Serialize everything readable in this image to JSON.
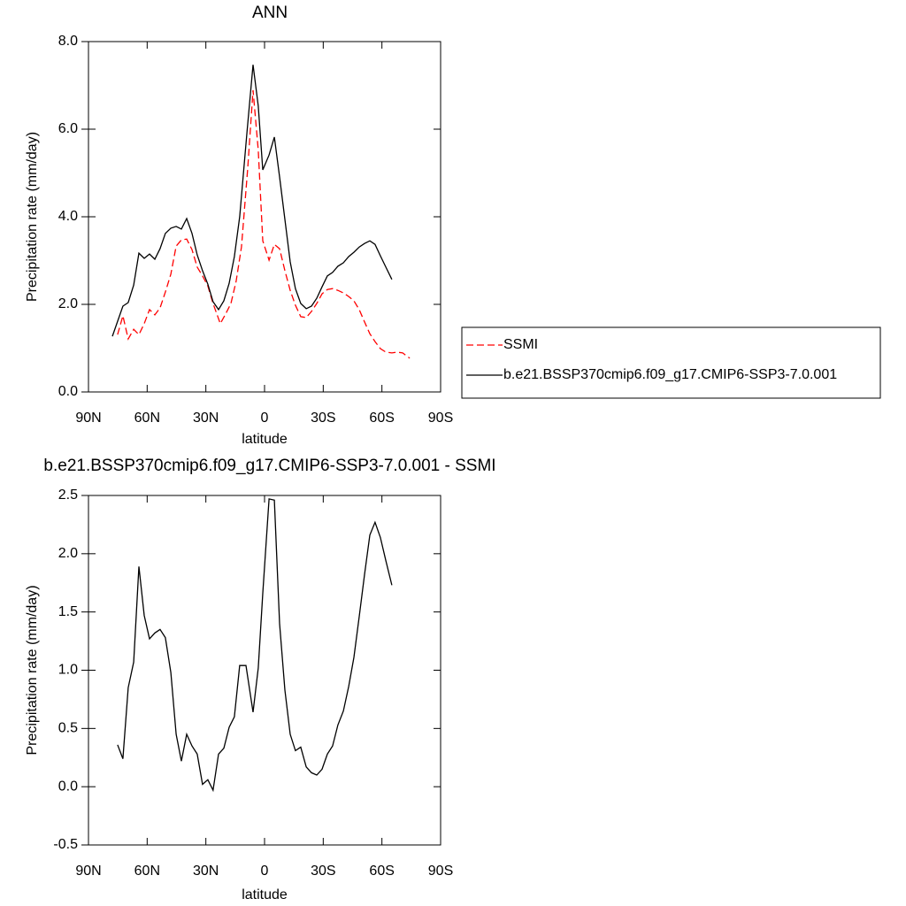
{
  "chart_data": [
    {
      "type": "line",
      "title": "ANN",
      "xlabel": "latitude",
      "ylabel": "Precipitation rate (mm/day)",
      "xlim": [
        90,
        -90
      ],
      "xticks": [
        {
          "value": 90,
          "label": "90N"
        },
        {
          "value": 60,
          "label": "60N"
        },
        {
          "value": 30,
          "label": "30N"
        },
        0,
        {
          "value": -30,
          "label": "30S"
        },
        {
          "value": -60,
          "label": "60S"
        },
        {
          "value": -90,
          "label": "90S"
        }
      ],
      "ylim": [
        0,
        8
      ],
      "yticks": [
        {
          "value": 0,
          "label": "0.0"
        },
        {
          "value": 2,
          "label": "2.0"
        },
        {
          "value": 4,
          "label": "4.0"
        },
        {
          "value": 6,
          "label": "6.0"
        },
        {
          "value": 8,
          "label": "8.0"
        }
      ],
      "series": [
        {
          "name": "SSMI",
          "color": "#ff0000",
          "line_style": "dashed",
          "x": [
            75.1,
            72.4,
            69.7,
            66.9,
            64.2,
            61.5,
            58.8,
            56.1,
            53.4,
            50.7,
            47.9,
            45.2,
            42.5,
            39.8,
            37.1,
            34.4,
            31.7,
            29.0,
            26.3,
            22.6,
            19.9,
            17.2,
            14.5,
            11.8,
            8.6,
            5.9,
            3.2,
            0.9,
            -2.3,
            -5.0,
            -7.7,
            -10.4,
            -13.1,
            -15.8,
            -18.5,
            -21.3,
            -24.0,
            -26.7,
            -29.4,
            -32.1,
            -34.8,
            -37.5,
            -40.3,
            -43.0,
            -45.7,
            -48.4,
            -51.1,
            -53.8,
            -56.5,
            -59.2,
            -62.0,
            -65.1,
            -67.8,
            -70.6,
            -74.2
          ],
          "values": [
            1.31,
            1.74,
            1.21,
            1.43,
            1.31,
            1.56,
            1.88,
            1.76,
            1.92,
            2.28,
            2.69,
            3.33,
            3.47,
            3.49,
            3.25,
            2.85,
            2.65,
            2.42,
            2.02,
            1.56,
            1.78,
            2.02,
            2.53,
            3.31,
            5.11,
            6.89,
            5.52,
            3.45,
            3.01,
            3.37,
            3.27,
            2.77,
            2.32,
            1.98,
            1.72,
            1.7,
            1.84,
            2.02,
            2.24,
            2.34,
            2.36,
            2.32,
            2.26,
            2.18,
            2.08,
            1.88,
            1.6,
            1.33,
            1.15,
            0.99,
            0.91,
            0.89,
            0.91,
            0.89,
            0.77
          ]
        },
        {
          "name": "b.e21.BSSP370cmip6.f09_g17.CMIP6-SSP3-7.0.001",
          "color": "#000000",
          "line_style": "solid",
          "x": [
            77.8,
            72.4,
            69.7,
            66.9,
            64.2,
            61.5,
            58.8,
            56.1,
            53.4,
            50.7,
            47.9,
            45.2,
            42.5,
            39.8,
            37.1,
            34.4,
            31.7,
            29.0,
            26.3,
            23.5,
            20.8,
            18.1,
            15.4,
            12.7,
            9.0,
            5.9,
            3.2,
            0.9,
            -2.3,
            -5.0,
            -7.7,
            -10.4,
            -13.1,
            -15.8,
            -18.5,
            -21.3,
            -24.0,
            -26.7,
            -29.4,
            -32.1,
            -34.8,
            -37.5,
            -40.3,
            -43.0,
            -45.7,
            -48.4,
            -51.1,
            -53.8,
            -56.5,
            -59.2,
            -62.0,
            -65.1
          ],
          "values": [
            1.27,
            1.96,
            2.04,
            2.44,
            3.17,
            3.05,
            3.15,
            3.03,
            3.27,
            3.62,
            3.74,
            3.78,
            3.72,
            3.96,
            3.62,
            3.13,
            2.77,
            2.46,
            2.06,
            1.88,
            2.08,
            2.48,
            3.09,
            4.0,
            5.92,
            7.47,
            6.53,
            5.07,
            5.41,
            5.82,
            4.91,
            3.94,
            2.97,
            2.36,
            2.02,
            1.9,
            1.96,
            2.14,
            2.4,
            2.65,
            2.73,
            2.87,
            2.95,
            3.09,
            3.19,
            3.31,
            3.39,
            3.45,
            3.37,
            3.11,
            2.85,
            2.57
          ]
        }
      ]
    },
    {
      "type": "line",
      "title": "b.e21.BSSP370cmip6.f09_g17.CMIP6-SSP3-7.0.001 - SSMI",
      "xlabel": "latitude",
      "ylabel": "Precipitation rate (mm/day)",
      "xlim": [
        90,
        -90
      ],
      "xticks": [
        {
          "value": 90,
          "label": "90N"
        },
        {
          "value": 60,
          "label": "60N"
        },
        {
          "value": 30,
          "label": "30N"
        },
        0,
        {
          "value": -30,
          "label": "30S"
        },
        {
          "value": -60,
          "label": "60S"
        },
        {
          "value": -90,
          "label": "90S"
        }
      ],
      "ylim": [
        -0.5,
        2.5
      ],
      "yticks": [
        {
          "value": -0.5,
          "label": "-0.5"
        },
        {
          "value": 0,
          "label": "0.0"
        },
        {
          "value": 0.5,
          "label": "0.5"
        },
        {
          "value": 1,
          "label": "1.0"
        },
        {
          "value": 1.5,
          "label": "1.5"
        },
        {
          "value": 2,
          "label": "2.0"
        },
        {
          "value": 2.5,
          "label": "2.5"
        }
      ],
      "series": [
        {
          "color": "#000000",
          "line_style": "solid",
          "x": [
            75.1,
            72.4,
            69.7,
            66.9,
            64.2,
            61.5,
            58.8,
            56.1,
            53.4,
            50.7,
            47.9,
            45.2,
            42.5,
            39.8,
            37.1,
            34.4,
            31.7,
            29.0,
            26.3,
            23.5,
            20.8,
            18.1,
            15.4,
            12.7,
            9.5,
            5.9,
            3.2,
            0.9,
            -2.3,
            -5.0,
            -7.7,
            -10.4,
            -13.1,
            -15.8,
            -18.5,
            -21.3,
            -24.0,
            -26.7,
            -29.4,
            -32.1,
            -34.8,
            -37.5,
            -40.3,
            -43.0,
            -45.7,
            -48.4,
            -51.1,
            -53.8,
            -56.5,
            -59.2,
            -62.0,
            -65.1
          ],
          "values": [
            0.36,
            0.24,
            0.85,
            1.07,
            1.89,
            1.47,
            1.27,
            1.32,
            1.35,
            1.28,
            0.98,
            0.45,
            0.22,
            0.45,
            0.35,
            0.28,
            0.02,
            0.06,
            -0.03,
            0.28,
            0.33,
            0.51,
            0.6,
            1.04,
            1.04,
            0.64,
            1.02,
            1.66,
            2.47,
            2.46,
            1.4,
            0.83,
            0.45,
            0.31,
            0.34,
            0.17,
            0.12,
            0.1,
            0.15,
            0.28,
            0.35,
            0.53,
            0.65,
            0.86,
            1.11,
            1.46,
            1.82,
            2.16,
            2.27,
            2.14,
            1.94,
            1.73
          ]
        }
      ]
    }
  ]
}
